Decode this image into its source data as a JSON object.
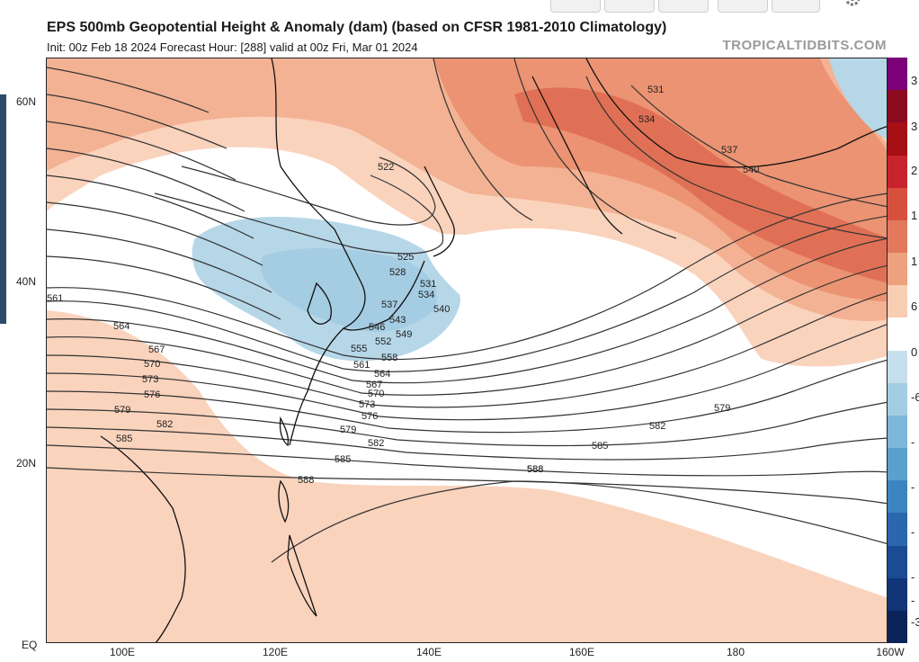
{
  "header": {
    "title": "EPS 500mb Geopotential Height & Anomaly (dam) (based on CFSR 1981-2010 Climatology)",
    "subtitle": "Init: 00z Feb 18 2024   Forecast Hour: [288]   valid at 00z Fri, Mar 01 2024",
    "credit": "TROPICALTIDBITS.COM"
  },
  "axes": {
    "lat_labels": [
      "60N",
      "40N",
      "20N",
      "EQ"
    ],
    "lon_labels": [
      "100E",
      "120E",
      "140E",
      "160E",
      "180",
      "160W"
    ]
  },
  "colorbar": {
    "labels": [
      "3",
      "3",
      "2",
      "1",
      "1",
      "6",
      "0",
      "-6",
      "-",
      "-",
      "-",
      "-",
      "-",
      "-3"
    ],
    "colors": [
      "#7a0177",
      "#8b0a1e",
      "#a50f15",
      "#c8242b",
      "#d7503e",
      "#e3795c",
      "#eea17f",
      "#f8cdb3",
      "#ffffff",
      "#c6dfec",
      "#a2cde3",
      "#7db7da",
      "#5aa0cf",
      "#3d85c0",
      "#2a67ac",
      "#1b4b92",
      "#113577",
      "#0a2359"
    ]
  },
  "contours": {
    "labels": [
      "522",
      "525",
      "528",
      "531",
      "534",
      "537",
      "540",
      "543",
      "546",
      "549",
      "552",
      "555",
      "558",
      "561",
      "564",
      "567",
      "570",
      "573",
      "576",
      "579",
      "582",
      "585",
      "588",
      "531",
      "534",
      "537",
      "540",
      "561",
      "564",
      "567",
      "570",
      "573",
      "576",
      "579",
      "582",
      "585",
      "588",
      "579",
      "582",
      "585",
      "588"
    ]
  },
  "icons": [
    "gear-icon"
  ]
}
